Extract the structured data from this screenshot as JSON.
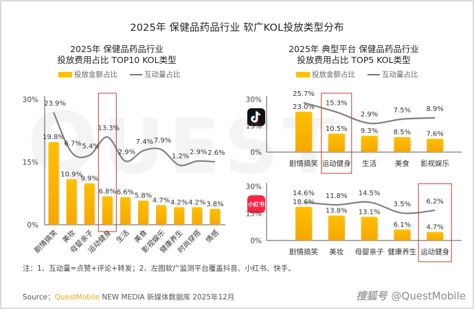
{
  "title": "2025年 保健品药品行业 软广KOL投放类型分布",
  "legend": {
    "bar": "投放金额占比",
    "line": "互动量占比"
  },
  "colors": {
    "bar": "#ffc000",
    "bar_dark": "#f5a800",
    "line": "#7f7f7f",
    "highlight_box": "#c0392b"
  },
  "platforms": {
    "top": "抖音",
    "bottom": "小红书",
    "bottom_icon_text": "小红书"
  },
  "chart_data": [
    {
      "type": "bar",
      "id": "left",
      "title": "2025年 保健品药品行业\n投放费用占比 TOP10 KOL类型",
      "title_line1": "2025年 保健品药品行业",
      "title_line2": "投放费用占比 TOP10 KOL类型",
      "categories": [
        "剧情搞笑",
        "美妆",
        "母婴亲子",
        "运动健身",
        "生活",
        "美食",
        "影视娱乐",
        "健康养生",
        "时尚穿搭",
        "情感"
      ],
      "series": [
        {
          "name": "投放金额占比",
          "kind": "bar",
          "values": [
            19.8,
            10.9,
            9.9,
            6.8,
            6.6,
            5.8,
            4.7,
            4.2,
            4.2,
            3.8
          ]
        },
        {
          "name": "互动量占比",
          "kind": "line",
          "values": [
            23.9,
            6.7,
            5.4,
            13.3,
            2.9,
            7.4,
            7.9,
            1.2,
            2.9,
            2.6
          ],
          "axis_range": [
            -24.5,
            29.5
          ]
        }
      ],
      "yticks": [
        "0%",
        "15%",
        "30%"
      ],
      "ylim": [
        0,
        30
      ],
      "highlight_category": "运动健身",
      "xlabel_rotation": "diagonal",
      "grid": false
    },
    {
      "type": "bar",
      "id": "right-top",
      "platform": "抖音",
      "title_line1": "2025年 典型平台 保健品药品行业",
      "title_line2": "投放费用占比 TOP5 KOL类型",
      "categories": [
        "剧情搞笑",
        "运动健身",
        "生活",
        "美食",
        "影视娱乐"
      ],
      "series": [
        {
          "name": "投放金额占比",
          "kind": "bar",
          "values": [
            23.0,
            10.5,
            9.3,
            8.5,
            7.6
          ]
        },
        {
          "name": "互动量占比",
          "kind": "line",
          "values": [
            25.7,
            15.3,
            2.9,
            7.5,
            8.9
          ],
          "axis_range": [
            -29,
            29.4
          ]
        }
      ],
      "yticks": [
        "0%",
        "15%",
        "30%"
      ],
      "ylim": [
        0,
        30
      ],
      "highlight_category": "运动健身",
      "grid": false
    },
    {
      "type": "bar",
      "id": "right-bottom",
      "platform": "小红书",
      "categories": [
        "剧情搞笑",
        "美妆",
        "母婴亲子",
        "健康养生",
        "运动健身"
      ],
      "series": [
        {
          "name": "投放金额占比",
          "kind": "bar",
          "values": [
            18.6,
            13.8,
            13.1,
            6.1,
            4.7
          ]
        },
        {
          "name": "互动量占比",
          "kind": "line",
          "values": [
            14.6,
            11.8,
            14.5,
            3.5,
            6.2
          ],
          "axis_range": [
            -24.3,
            30.5
          ]
        }
      ],
      "yticks": [
        "0%",
        "15%",
        "30%"
      ],
      "ylim": [
        0,
        30
      ],
      "highlight_category": "运动健身",
      "grid": false
    }
  ],
  "note": "注：1、互动量=点赞+评论+转发；2、左图软广监测平台覆盖抖音、小红书、快手。",
  "source": {
    "label": "Source：",
    "brand": "QuestMobile",
    "rest": " NEW MEDIA 新媒体数据库 2025年12月"
  },
  "watermark": {
    "cn": "搜狐号",
    "handle": "@QuestMobile",
    "bg": "QUESTMOBILE"
  }
}
